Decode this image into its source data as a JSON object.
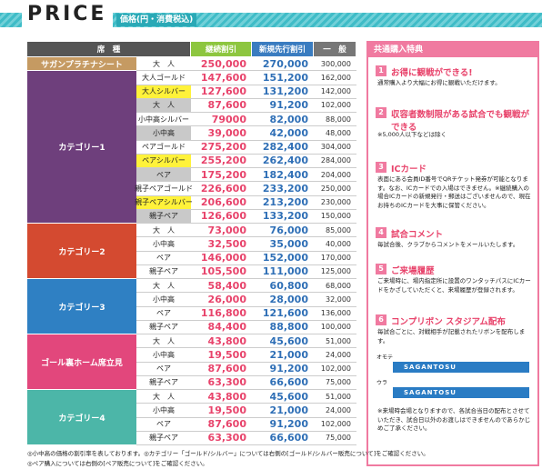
{
  "header": {
    "title": "PRICE",
    "subtitle": "価格(円・消費税込)"
  },
  "table": {
    "columns": [
      "席　種",
      "継続割引",
      "新規先行割引",
      "一　般"
    ],
    "groups": [
      {
        "name": "サガンプラチナシート",
        "rows": [
          [
            "大　人",
            "250,000",
            "270,000",
            "300,000"
          ]
        ]
      },
      {
        "name": "カテゴリー1",
        "rows": [
          [
            "大人ゴールド",
            "147,600",
            "151,200",
            "162,000"
          ],
          [
            "大人シルバー",
            "127,600",
            "131,200",
            "142,000"
          ],
          [
            "大　人",
            "87,600",
            "91,200",
            "102,000"
          ],
          [
            "小中高シルバー",
            "79000",
            "82,000",
            "88,000"
          ],
          [
            "小中高",
            "39,000",
            "42,000",
            "48,000"
          ],
          [
            "ペアゴールド",
            "275,200",
            "282,400",
            "304,000"
          ],
          [
            "ペアシルバー",
            "255,200",
            "262,400",
            "284,000"
          ],
          [
            "ペア",
            "175,200",
            "182,400",
            "204,000"
          ],
          [
            "親子ペアゴールド",
            "226,600",
            "233,200",
            "250,000"
          ],
          [
            "親子ペアシルバー",
            "206,600",
            "213,200",
            "230,000"
          ],
          [
            "親子ペア",
            "126,600",
            "133,200",
            "150,000"
          ]
        ]
      },
      {
        "name": "カテゴリー2",
        "rows": [
          [
            "大　人",
            "73,000",
            "76,000",
            "85,000"
          ],
          [
            "小中高",
            "32,500",
            "35,000",
            "40,000"
          ],
          [
            "ペア",
            "146,000",
            "152,000",
            "170,000"
          ],
          [
            "親子ペア",
            "105,500",
            "111,000",
            "125,000"
          ]
        ]
      },
      {
        "name": "カテゴリー3",
        "rows": [
          [
            "大　人",
            "58,400",
            "60,800",
            "68,000"
          ],
          [
            "小中高",
            "26,000",
            "28,000",
            "32,000"
          ],
          [
            "ペア",
            "116,800",
            "121,600",
            "136,000"
          ],
          [
            "親子ペア",
            "84,400",
            "88,800",
            "100,000"
          ]
        ]
      },
      {
        "name": "ゴール裏ホーム席立見",
        "rows": [
          [
            "大　人",
            "43,800",
            "45,600",
            "51,000"
          ],
          [
            "小中高",
            "19,500",
            "21,000",
            "24,000"
          ],
          [
            "ペア",
            "87,600",
            "91,200",
            "102,000"
          ],
          [
            "親子ペア",
            "63,300",
            "66,600",
            "75,000"
          ]
        ]
      },
      {
        "name": "カテゴリー4",
        "rows": [
          [
            "大　人",
            "43,800",
            "45,600",
            "51,000"
          ],
          [
            "小中高",
            "19,500",
            "21,000",
            "24,000"
          ],
          [
            "ペア",
            "87,600",
            "91,200",
            "102,000"
          ],
          [
            "親子ペア",
            "63,300",
            "66,600",
            "75,000"
          ]
        ]
      }
    ],
    "notes": [
      "◎小中高の価格の割引率を表しております。◎カテゴリー「ゴールド/シルバー」については右側の[ゴールド/シルバー販売について]をご確認ください。",
      "◎ペア購入については右側の[ペア販売について]をご確認ください。"
    ]
  },
  "benefits": {
    "title": "共通購入特典",
    "items": [
      {
        "number": "1",
        "heading": "お得に観戦ができる!",
        "body": "通常購入より大幅にお得に観戦いただけます。"
      },
      {
        "number": "2",
        "heading": "収容者数制限がある試合でも観戦ができる",
        "body": "※5,000人以下などは除く"
      },
      {
        "number": "3",
        "heading": "ICカード",
        "body": "表面にある会員ID番号でQRチケット発券が可能となります。なお、ICカードでの入場はできません。※継続購入の場合ICカードの新規発行・郵送はございませんので、現在お持ちのICカードを大事に保管ください。"
      },
      {
        "number": "4",
        "heading": "試合コメント",
        "body": "毎試合後、クラブからコメントをメールいたします。"
      },
      {
        "number": "5",
        "heading": "ご来場履歴",
        "body": "ご来場時に、場内指定所に設置のワンタッチパスにICカードをかざしていただくと、来場履歴が登録されます。"
      },
      {
        "number": "6",
        "heading": "コンプリボン スタジアム配布",
        "body": "毎試合ごとに、対戦相手が記載されたリボンを配布します。"
      }
    ],
    "ribbon": {
      "front": "オモテ",
      "back": "ウラ",
      "text": "SAGANTOSU"
    },
    "note": "※来場時会場となりますので、各試合当日の配布とさせていただき、試合日以外のお渡しはできませんのであらかじめご了承ください。"
  }
}
